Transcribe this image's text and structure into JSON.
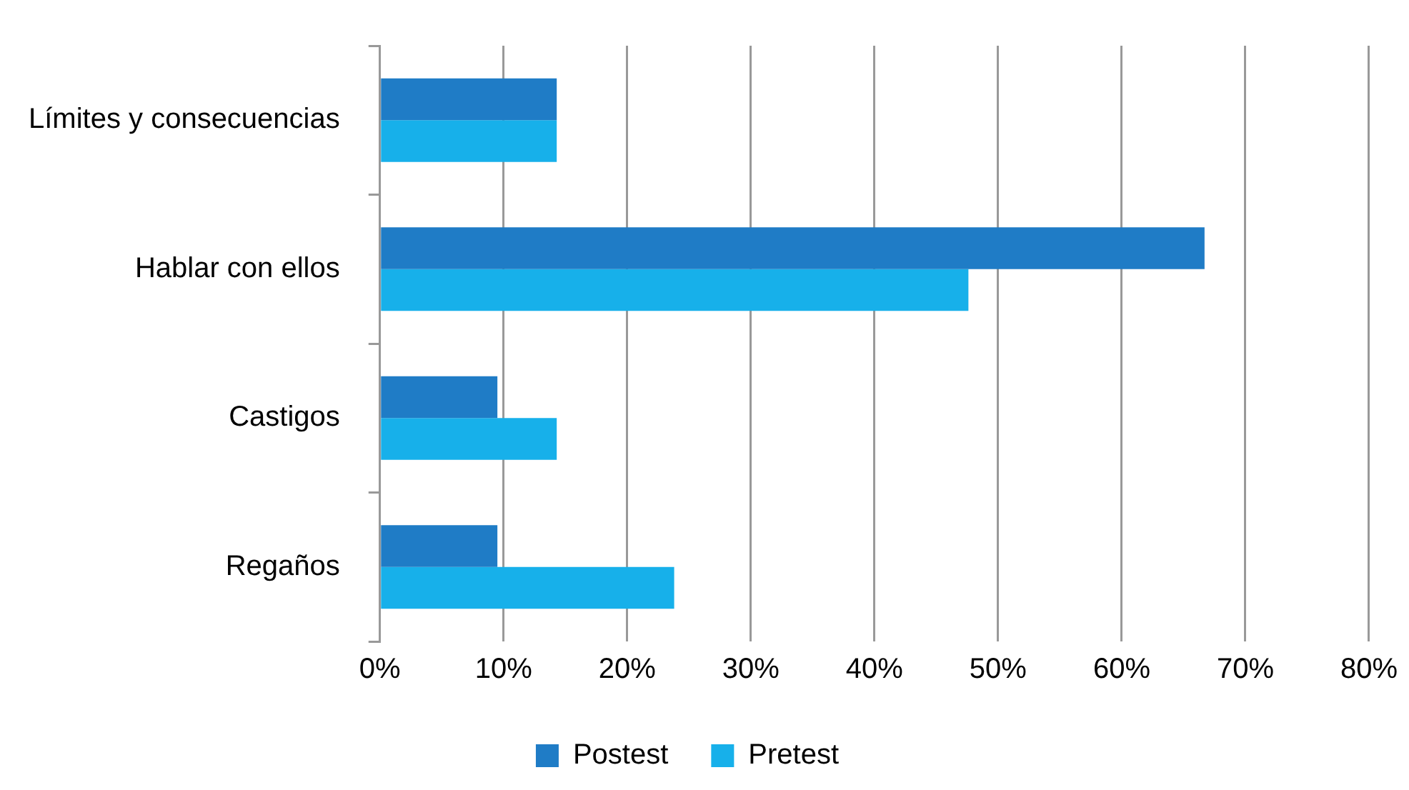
{
  "chart_data": {
    "type": "bar",
    "orientation": "horizontal",
    "categories": [
      "Límites y consecuencias",
      "Hablar con ellos",
      "Castigos",
      "Regaños"
    ],
    "series": [
      {
        "name": "Postest",
        "color": "#1f7cc6",
        "values": [
          14.3,
          66.7,
          9.5,
          9.5
        ]
      },
      {
        "name": "Pretest",
        "color": "#17b0ea",
        "values": [
          14.3,
          47.6,
          14.3,
          23.8
        ]
      }
    ],
    "xlim": [
      0,
      80
    ],
    "xticks": [
      {
        "value": 0,
        "label": "0%"
      },
      {
        "value": 10,
        "label": "10%"
      },
      {
        "value": 20,
        "label": "20%"
      },
      {
        "value": 30,
        "label": "30%"
      },
      {
        "value": 40,
        "label": "40%"
      },
      {
        "value": 50,
        "label": "50%"
      },
      {
        "value": 60,
        "label": "60%"
      },
      {
        "value": 70,
        "label": "70%"
      },
      {
        "value": 80,
        "label": "80%"
      }
    ],
    "grid": "x",
    "legend": "bottom"
  }
}
